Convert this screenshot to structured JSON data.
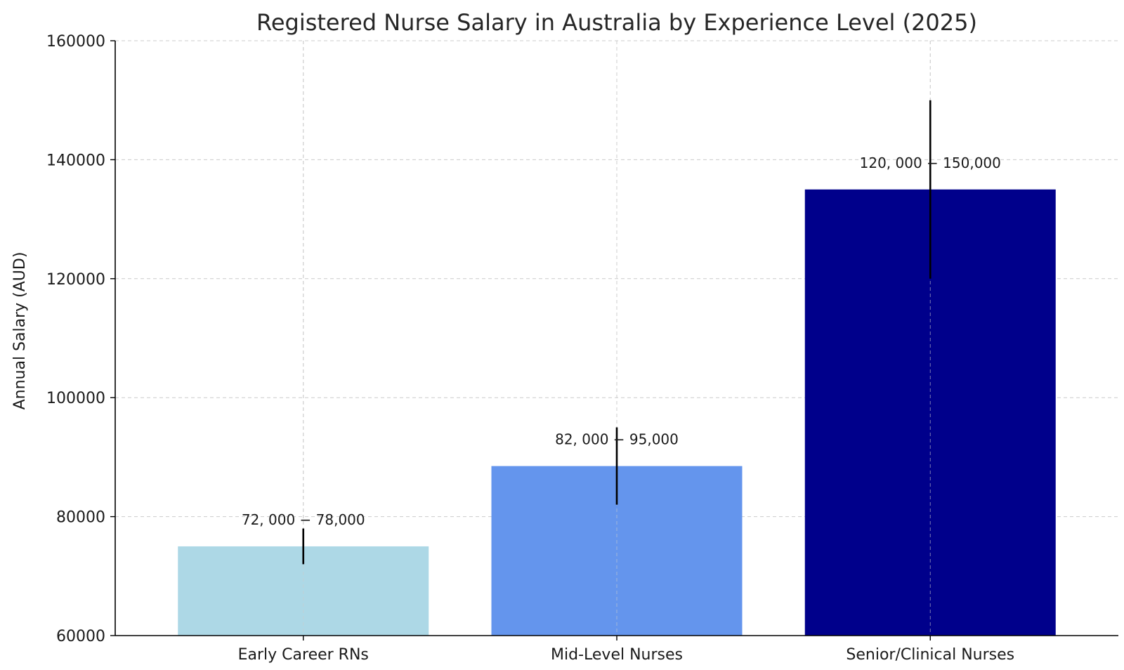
{
  "chart_data": {
    "type": "bar",
    "title": "Registered Nurse Salary in Australia by Experience Level (2025)",
    "xlabel": "",
    "ylabel": "Annual Salary (AUD)",
    "ylim": [
      60000,
      160000
    ],
    "yticks": [
      60000,
      80000,
      100000,
      120000,
      140000,
      160000
    ],
    "ytick_labels": [
      "60000",
      "80000",
      "100000",
      "120000",
      "140000",
      "160000"
    ],
    "categories": [
      "Early Career RNs",
      "Mid-Level Nurses",
      "Senior/Clinical Nurses"
    ],
    "values": [
      75000,
      88500,
      135000
    ],
    "error_low": [
      72000,
      82000,
      120000
    ],
    "error_high": [
      78000,
      95000,
      150000
    ],
    "data_labels": [
      "72, 000 − 78,000",
      "82, 000 − 95,000",
      "120, 000 − 150,000"
    ],
    "colors": [
      "#add8e6",
      "#6495ed",
      "#00008b"
    ],
    "error_color": "#000000",
    "grid": true,
    "grid_color": "#cccccc",
    "legend": "none"
  }
}
